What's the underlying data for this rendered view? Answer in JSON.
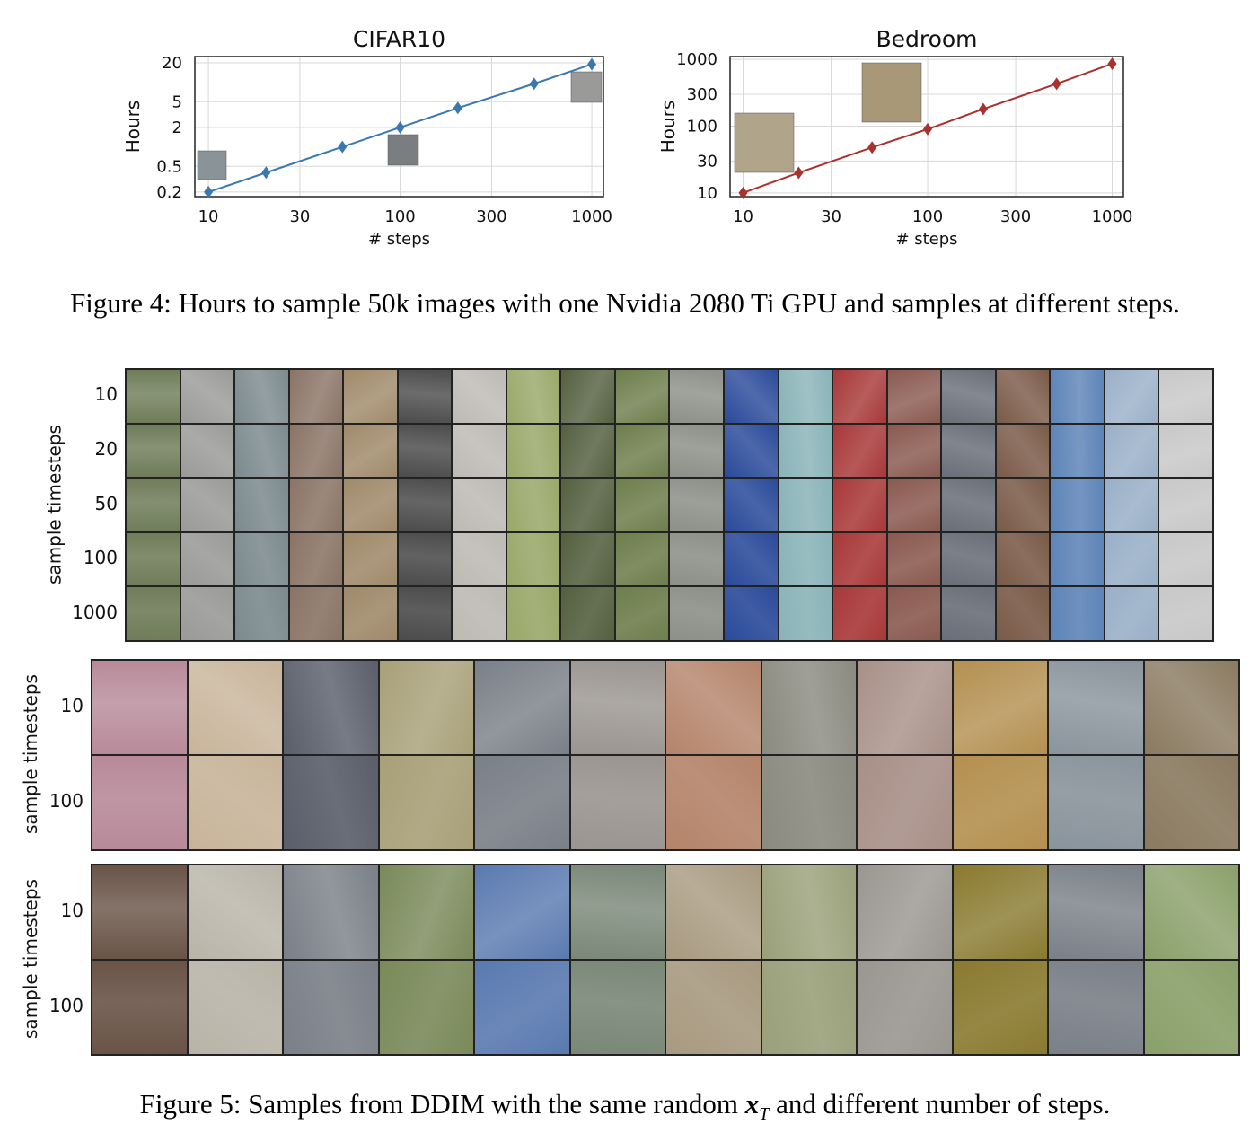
{
  "chart_data": [
    {
      "type": "line",
      "title": "CIFAR10",
      "xlabel": "# steps",
      "ylabel": "Hours",
      "x_scale": "log",
      "y_scale": "log",
      "grid": true,
      "xlim": [
        8.5,
        1150
      ],
      "ylim": [
        0.17,
        25
      ],
      "xticks": [
        10,
        30,
        100,
        300,
        1000
      ],
      "xtick_labels": [
        "10",
        "30",
        "100",
        "300",
        "1000"
      ],
      "yticks": [
        0.2,
        0.5,
        2,
        5,
        20
      ],
      "ytick_labels": [
        "0.2",
        "0.5",
        "2",
        "5",
        "20"
      ],
      "color": "#3a78b0",
      "x": [
        10,
        20,
        50,
        100,
        200,
        500,
        1000
      ],
      "y": [
        0.2,
        0.4,
        1.0,
        2.0,
        4.0,
        9.5,
        19.0
      ]
    },
    {
      "type": "line",
      "title": "Bedroom",
      "xlabel": "# steps",
      "ylabel": "Hours",
      "x_scale": "log",
      "y_scale": "log",
      "grid": true,
      "xlim": [
        8.5,
        1150
      ],
      "ylim": [
        8.8,
        1100
      ],
      "xticks": [
        10,
        30,
        100,
        300,
        1000
      ],
      "xtick_labels": [
        "10",
        "30",
        "100",
        "300",
        "1000"
      ],
      "yticks": [
        10,
        30,
        100,
        300,
        1000
      ],
      "ytick_labels": [
        "10",
        "30",
        "100",
        "300",
        "1000"
      ],
      "color": "#a8322d",
      "x": [
        10,
        20,
        50,
        100,
        200,
        500,
        1000
      ],
      "y": [
        10,
        20,
        48,
        90,
        180,
        430,
        860
      ]
    }
  ],
  "figure4": {
    "caption": "Figure 4: Hours to sample 50k images with one Nvidia 2080 Ti GPU and samples at different steps."
  },
  "figure5": {
    "caption_before": "Figure 5: Samples from DDIM with the same random ",
    "caption_math": "x",
    "caption_math_sub": "T",
    "caption_after": " and different number of steps.",
    "panels": [
      {
        "ylabel": "sample timesteps",
        "rows": [
          "10",
          "20",
          "50",
          "100",
          "1000"
        ],
        "cols": 20,
        "palette": [
          "#6f7d5a",
          "#9a9a98",
          "#7c8a8e",
          "#8a7466",
          "#a08a6a",
          "#4c4c4c",
          "#bdbab4",
          "#9aa86a",
          "#556040",
          "#6e7e4c",
          "#8c9088",
          "#2a4a9a",
          "#8ab4b8",
          "#a83838",
          "#8a5a50",
          "#6a6e78",
          "#7a5a48",
          "#5e84b8",
          "#9ab0c8",
          "#c8c8c8"
        ]
      },
      {
        "ylabel": "sample timesteps",
        "rows": [
          "10",
          "100"
        ],
        "cols": 12,
        "palette": [
          "#b88a9a",
          "#c8b49a",
          "#5a5e6a",
          "#a8a078",
          "#7a8088",
          "#9a9590",
          "#b4846a",
          "#8a8a80",
          "#a89088",
          "#b49050",
          "#8a949c",
          "#8a7a60"
        ]
      },
      {
        "ylabel": "sample timesteps",
        "rows": [
          "10",
          "100"
        ],
        "cols": 12,
        "palette": [
          "#6a5448",
          "#b8b4a8",
          "#7a8088",
          "#7a8a5a",
          "#5a7ab0",
          "#7a8878",
          "#a89a80",
          "#9aa07a",
          "#9a9690",
          "#8a7a30",
          "#7a8088",
          "#8aa06a"
        ]
      }
    ]
  }
}
